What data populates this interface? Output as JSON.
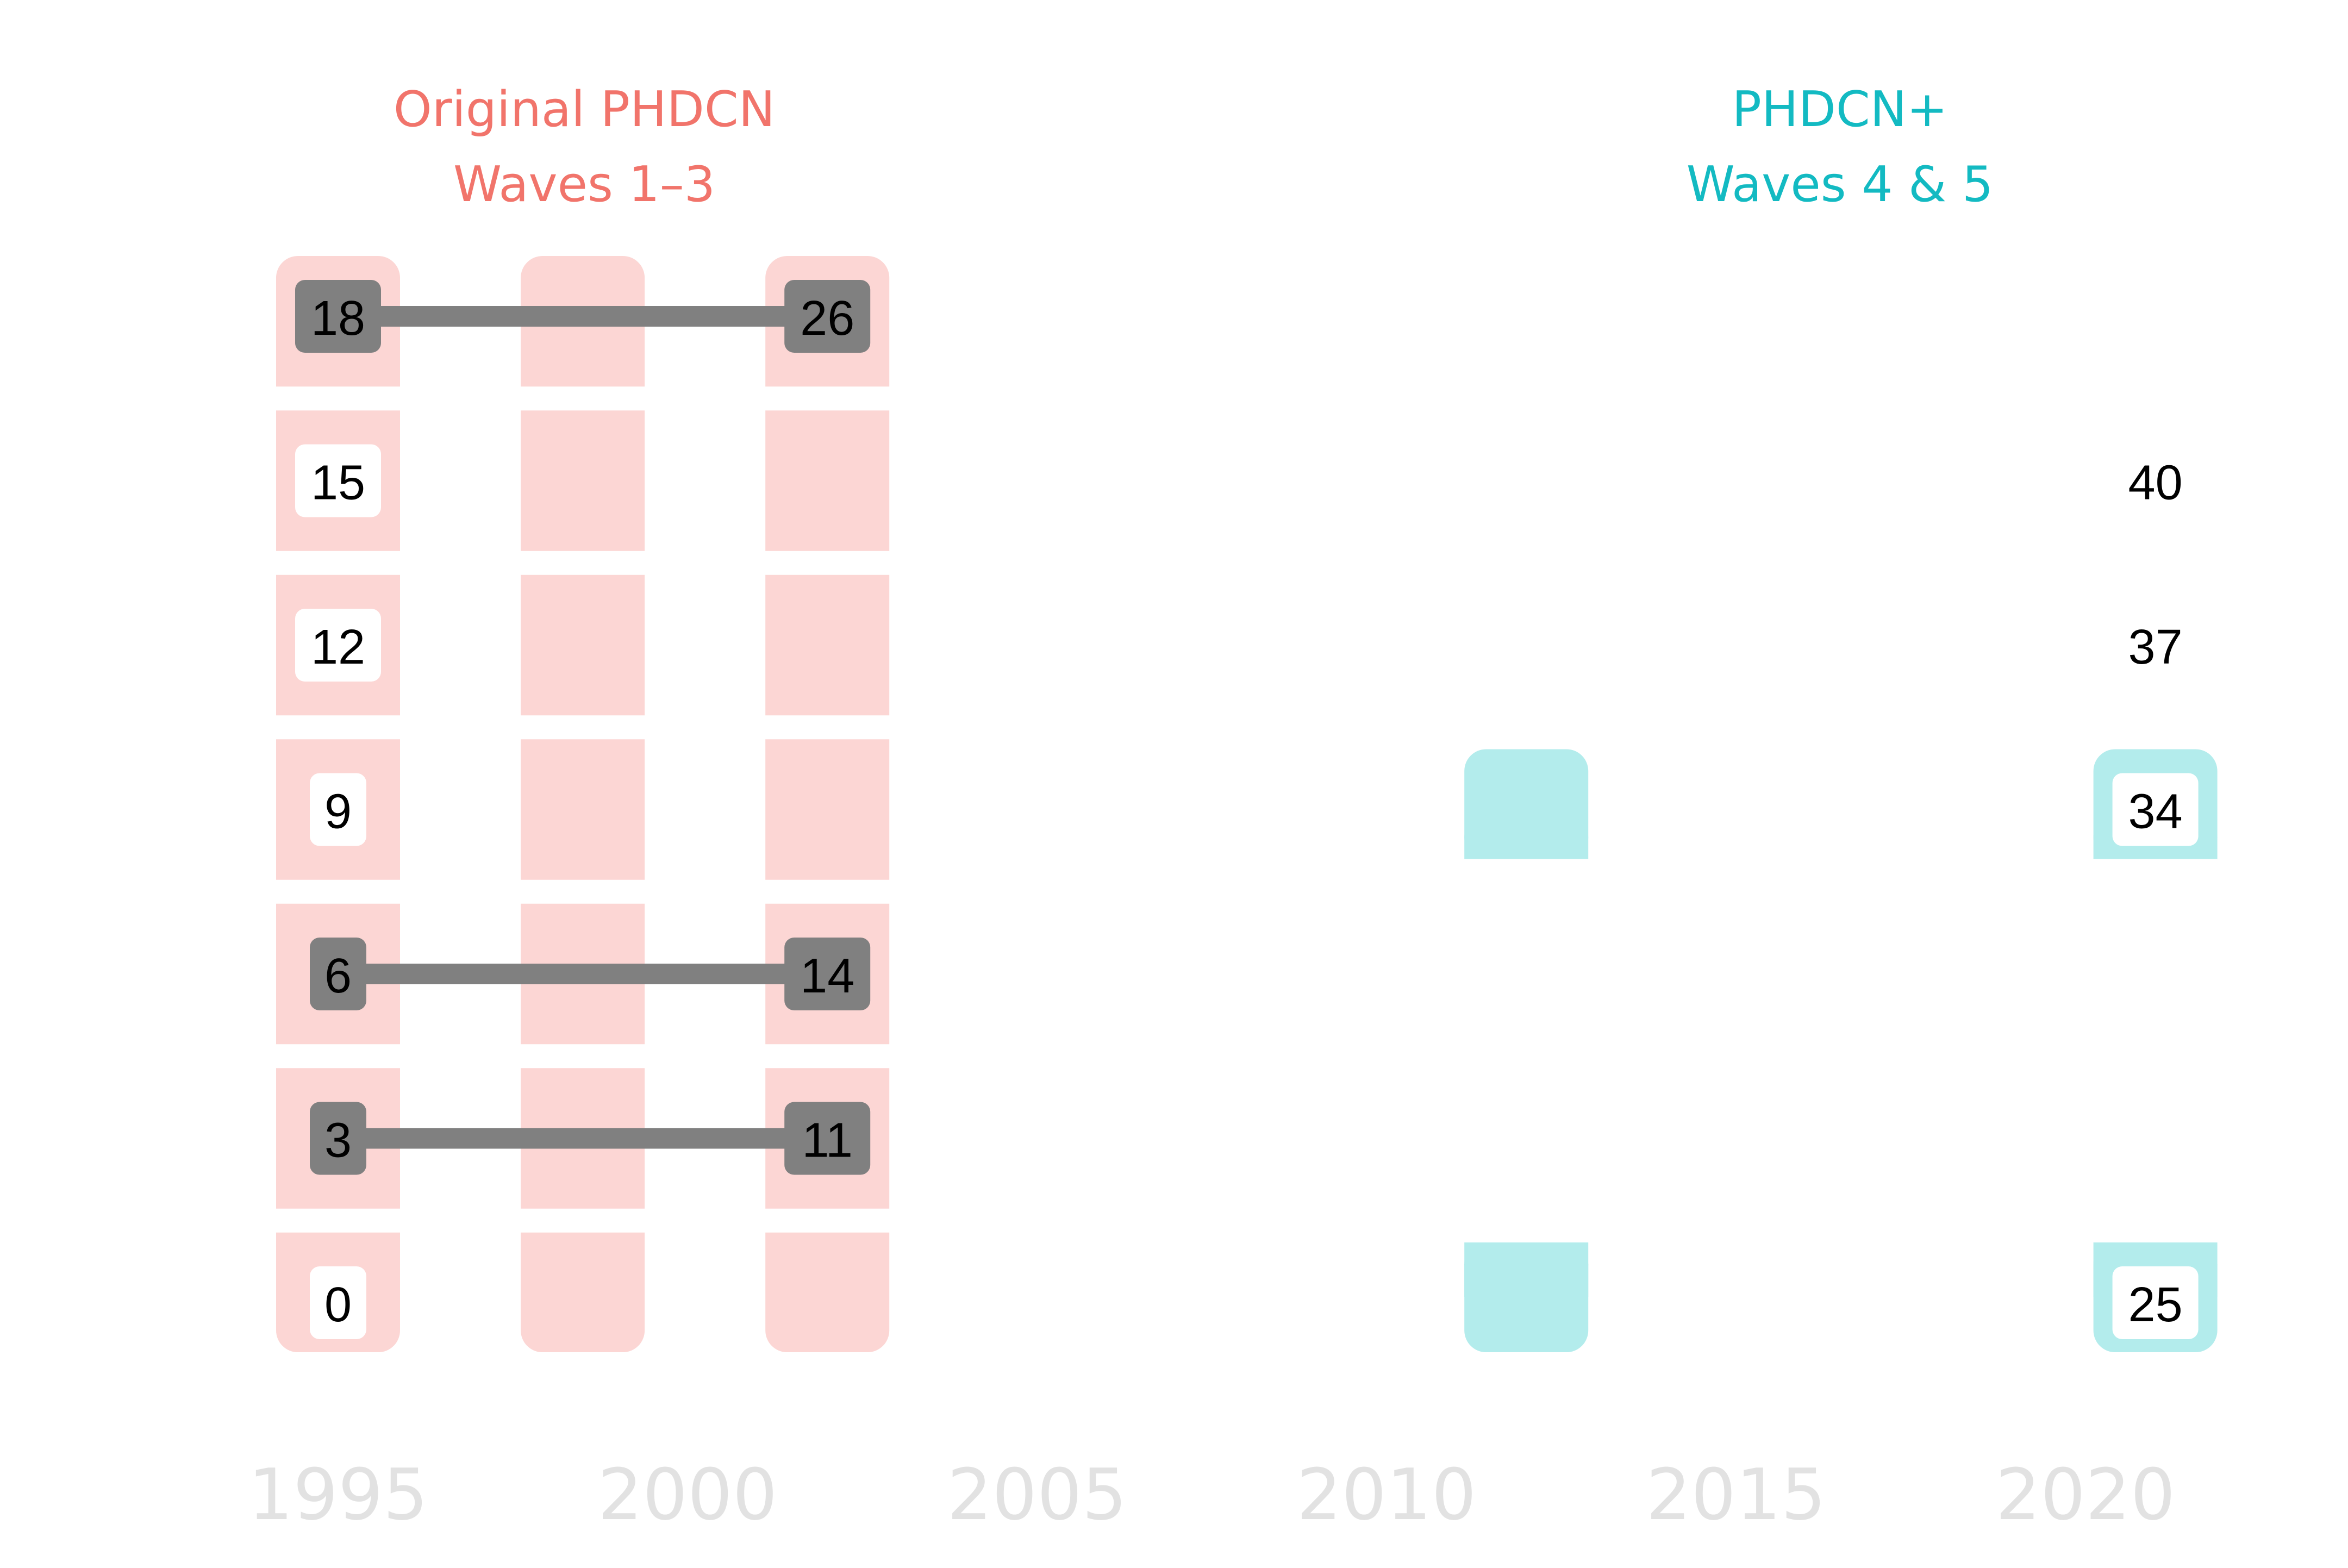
{
  "groups": [
    {
      "id": "original",
      "title_line1": "Original PHDCN",
      "title_line2": "Waves 1–3",
      "color": "#f1746b",
      "band_color": "#fcd6d4"
    },
    {
      "id": "plus",
      "title_line1": "PHDCN+",
      "title_line2": "Waves 4 & 5",
      "color": "#13bac2",
      "band_color": "#b3ecec"
    }
  ],
  "years": [
    "1995",
    "2000",
    "2005",
    "2010",
    "2015",
    "2020"
  ],
  "waves": [
    {
      "group": "original",
      "year": 1995.0,
      "age_min": 0,
      "age_max": 18
    },
    {
      "group": "original",
      "year": 1998.5,
      "age_min": 0,
      "age_max": 18
    },
    {
      "group": "original",
      "year": 2002.0,
      "age_min": 0,
      "age_max": 18
    },
    {
      "group": "plus",
      "year": 2012.0,
      "age_min": 0,
      "age_max": 9,
      "gap": [
        1,
        8
      ]
    },
    {
      "group": "plus",
      "year": 2021.0,
      "age_min": 0,
      "age_max": 9,
      "gap": [
        1,
        8
      ]
    }
  ],
  "cohort_rows": [
    0,
    3,
    6,
    9,
    12,
    15,
    18
  ],
  "labels": [
    {
      "year": 1995,
      "row": 18,
      "text": "18",
      "style": "dark"
    },
    {
      "year": 1995,
      "row": 15,
      "text": "15",
      "style": "light"
    },
    {
      "year": 1995,
      "row": 12,
      "text": "12",
      "style": "light"
    },
    {
      "year": 1995,
      "row": 9,
      "text": "9",
      "style": "light"
    },
    {
      "year": 1995,
      "row": 6,
      "text": "6",
      "style": "dark"
    },
    {
      "year": 1995,
      "row": 3,
      "text": "3",
      "style": "dark"
    },
    {
      "year": 1995,
      "row": 0,
      "text": "0",
      "style": "light"
    },
    {
      "year": 2002,
      "row": 18,
      "text": "26",
      "style": "dark"
    },
    {
      "year": 2002,
      "row": 6,
      "text": "14",
      "style": "dark"
    },
    {
      "year": 2002,
      "row": 3,
      "text": "11",
      "style": "dark"
    },
    {
      "year": 2021,
      "row": 15,
      "text": "40",
      "style": "light"
    },
    {
      "year": 2021,
      "row": 12,
      "text": "37",
      "style": "light"
    },
    {
      "year": 2021,
      "row": 9,
      "text": "34",
      "style": "light"
    },
    {
      "year": 2021,
      "row": 0,
      "text": "25",
      "style": "light"
    }
  ],
  "links": [
    {
      "row": 18,
      "from_year": 1995,
      "to_year": 2002
    },
    {
      "row": 6,
      "from_year": 1995,
      "to_year": 2002
    },
    {
      "row": 3,
      "from_year": 1995,
      "to_year": 2002
    }
  ],
  "colors": {
    "link": "#808080",
    "dark_label": "#808080",
    "light_label": "#ffffff",
    "year_text": "#e2e2e2"
  }
}
